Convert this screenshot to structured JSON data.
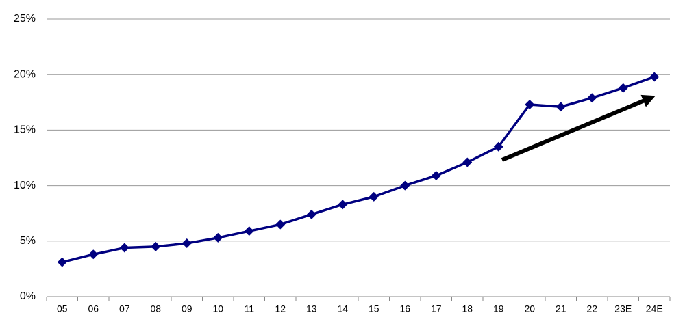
{
  "chart_data": {
    "type": "line",
    "categories": [
      "05",
      "06",
      "07",
      "08",
      "09",
      "10",
      "11",
      "12",
      "13",
      "14",
      "15",
      "16",
      "17",
      "18",
      "19",
      "20",
      "21",
      "22",
      "23E",
      "24E"
    ],
    "values": [
      3.1,
      3.8,
      4.4,
      4.5,
      4.8,
      5.3,
      5.9,
      6.5,
      7.4,
      8.3,
      9.0,
      10.0,
      10.9,
      12.1,
      13.5,
      17.3,
      17.1,
      17.9,
      18.8,
      19.8
    ],
    "color": "#000080",
    "ylim": [
      0,
      25
    ],
    "yticks": [
      {
        "value": 0,
        "label": "0%"
      },
      {
        "value": 5,
        "label": "5%"
      },
      {
        "value": 10,
        "label": "10%"
      },
      {
        "value": 15,
        "label": "15%"
      },
      {
        "value": 20,
        "label": "20%"
      },
      {
        "value": 25,
        "label": "25%"
      }
    ],
    "grid": true
  }
}
